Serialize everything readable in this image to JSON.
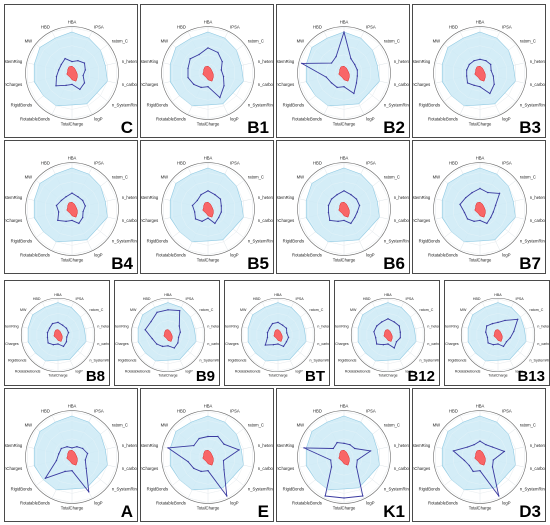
{
  "colors": {
    "range_fill": "#cdeaf6",
    "range_stroke": "#8fc9e2",
    "compound_line": "#3a3aa0",
    "reference_fill": "#ff4d4d",
    "grid": "#d6dde2"
  },
  "chart_data": [
    {
      "type": "radar",
      "panel_label": "C",
      "row": 0,
      "axes": [
        "HBA",
        "IPSA",
        "ratom_C",
        "n_hetero",
        "n_carbon",
        "n_SystemRing",
        "logP",
        "TotalCharge",
        "RotatableBonds",
        "RigidBonds",
        "kcmCharges",
        "SizeSystemRing",
        "MW",
        "HBD"
      ],
      "range": [
        0.9,
        0.85,
        0.8,
        0.75,
        0.8,
        0.7,
        0.75,
        0.7,
        0.8,
        0.8,
        0.85,
        0.85,
        0.9,
        0.85
      ],
      "reference": [
        0.15,
        0.12,
        0.1,
        0.1,
        0.12,
        0.15,
        0.2,
        0.15,
        0.1,
        0.1,
        0.12,
        0.1,
        0.12,
        0.15
      ],
      "compound": [
        0.25,
        0.3,
        0.35,
        0.3,
        0.25,
        0.35,
        0.4,
        0.25,
        0.3,
        0.45,
        0.35,
        0.3,
        0.3,
        0.35
      ]
    },
    {
      "type": "radar",
      "panel_label": "B1",
      "row": 0,
      "axes": [
        "HBA",
        "IPSA",
        "ratom_C",
        "n_hetero",
        "n_carbon",
        "n_SystemRing",
        "logP",
        "TotalCharge",
        "RotatableBonds",
        "RigidBonds",
        "kcmCharges",
        "SizeSystemRing",
        "MW",
        "HBD"
      ],
      "range": [
        0.9,
        0.85,
        0.8,
        0.75,
        0.8,
        0.7,
        0.75,
        0.7,
        0.8,
        0.8,
        0.85,
        0.85,
        0.9,
        0.85
      ],
      "reference": [
        0.15,
        0.12,
        0.1,
        0.1,
        0.12,
        0.15,
        0.2,
        0.15,
        0.1,
        0.1,
        0.12,
        0.1,
        0.12,
        0.15
      ],
      "compound": [
        0.55,
        0.5,
        0.4,
        0.3,
        0.35,
        0.45,
        0.6,
        0.3,
        0.35,
        0.4,
        0.45,
        0.45,
        0.5,
        0.45
      ]
    },
    {
      "type": "radar",
      "panel_label": "B2",
      "row": 0,
      "axes": [
        "HBA",
        "IPSA",
        "ratom_C",
        "n_hetero",
        "n_carbon",
        "n_SystemRing",
        "logP",
        "TotalCharge",
        "RotatableBonds",
        "RigidBonds",
        "kcmCharges",
        "SizeSystemRing",
        "MW",
        "HBD"
      ],
      "range": [
        0.9,
        0.85,
        0.8,
        0.75,
        0.8,
        0.7,
        0.75,
        0.7,
        0.8,
        0.8,
        0.85,
        0.85,
        0.9,
        0.85
      ],
      "reference": [
        0.15,
        0.12,
        0.1,
        0.1,
        0.12,
        0.15,
        0.2,
        0.15,
        0.1,
        0.1,
        0.12,
        0.1,
        0.12,
        0.15
      ],
      "compound": [
        0.9,
        0.35,
        0.3,
        0.3,
        0.3,
        0.35,
        0.5,
        0.3,
        0.35,
        0.35,
        0.4,
        0.95,
        0.35,
        0.4
      ]
    },
    {
      "type": "radar",
      "panel_label": "B3",
      "row": 0,
      "axes": [
        "HBA",
        "IPSA",
        "ratom_C",
        "n_hetero",
        "n_carbon",
        "n_SystemRing",
        "logP",
        "TotalCharge",
        "RotatableBonds",
        "RigidBonds",
        "kcmCharges",
        "SizeSystemRing",
        "MW",
        "HBD"
      ],
      "range": [
        0.9,
        0.85,
        0.8,
        0.75,
        0.8,
        0.7,
        0.75,
        0.7,
        0.8,
        0.8,
        0.85,
        0.85,
        0.9,
        0.85
      ],
      "reference": [
        0.15,
        0.12,
        0.1,
        0.1,
        0.12,
        0.15,
        0.2,
        0.15,
        0.1,
        0.1,
        0.12,
        0.1,
        0.12,
        0.15
      ],
      "compound": [
        0.3,
        0.3,
        0.3,
        0.25,
        0.3,
        0.4,
        0.5,
        0.3,
        0.3,
        0.35,
        0.3,
        0.3,
        0.3,
        0.3
      ]
    },
    {
      "type": "radar",
      "panel_label": "B4",
      "row": 1,
      "axes": [
        "HBA",
        "IPSA",
        "ratom_C",
        "n_hetero",
        "n_carbon",
        "n_SystemRing",
        "logP",
        "TotalCharge",
        "RotatableBonds",
        "RigidBonds",
        "kcmCharges",
        "SizeSystemRing",
        "MW",
        "HBD"
      ],
      "range": [
        0.9,
        0.85,
        0.8,
        0.75,
        0.8,
        0.7,
        0.75,
        0.7,
        0.8,
        0.8,
        0.85,
        0.85,
        0.9,
        0.85
      ],
      "reference": [
        0.15,
        0.12,
        0.1,
        0.1,
        0.12,
        0.15,
        0.2,
        0.15,
        0.1,
        0.1,
        0.12,
        0.1,
        0.12,
        0.15
      ],
      "compound": [
        0.35,
        0.3,
        0.3,
        0.3,
        0.25,
        0.3,
        0.35,
        0.25,
        0.3,
        0.4,
        0.3,
        0.35,
        0.3,
        0.3
      ]
    },
    {
      "type": "radar",
      "panel_label": "B5",
      "row": 1,
      "axes": [
        "HBA",
        "IPSA",
        "ratom_C",
        "n_hetero",
        "n_carbon",
        "n_SystemRing",
        "logP",
        "TotalCharge",
        "RotatableBonds",
        "RigidBonds",
        "kcmCharges",
        "SizeSystemRing",
        "MW",
        "HBD"
      ],
      "range": [
        0.9,
        0.85,
        0.8,
        0.75,
        0.8,
        0.7,
        0.75,
        0.7,
        0.8,
        0.8,
        0.85,
        0.85,
        0.9,
        0.85
      ],
      "reference": [
        0.15,
        0.12,
        0.1,
        0.1,
        0.12,
        0.15,
        0.2,
        0.15,
        0.1,
        0.1,
        0.12,
        0.1,
        0.12,
        0.15
      ],
      "compound": [
        0.4,
        0.35,
        0.35,
        0.3,
        0.3,
        0.3,
        0.35,
        0.2,
        0.3,
        0.35,
        0.3,
        0.35,
        0.3,
        0.35
      ]
    },
    {
      "type": "radar",
      "panel_label": "B6",
      "row": 1,
      "axes": [
        "HBA",
        "IPSA",
        "ratom_C",
        "n_hetero",
        "n_carbon",
        "n_SystemRing",
        "logP",
        "TotalCharge",
        "RotatableBonds",
        "RigidBonds",
        "kcmCharges",
        "SizeSystemRing",
        "MW",
        "HBD"
      ],
      "range": [
        0.9,
        0.85,
        0.8,
        0.75,
        0.8,
        0.7,
        0.75,
        0.7,
        0.8,
        0.8,
        0.85,
        0.85,
        0.9,
        0.85
      ],
      "reference": [
        0.15,
        0.12,
        0.1,
        0.1,
        0.12,
        0.15,
        0.2,
        0.15,
        0.1,
        0.1,
        0.12,
        0.1,
        0.12,
        0.15
      ],
      "compound": [
        0.4,
        0.35,
        0.35,
        0.35,
        0.3,
        0.3,
        0.35,
        0.25,
        0.3,
        0.4,
        0.35,
        0.35,
        0.35,
        0.35
      ]
    },
    {
      "type": "radar",
      "panel_label": "B7",
      "row": 1,
      "axes": [
        "HBA",
        "IPSA",
        "ratom_C",
        "n_hetero",
        "n_carbon",
        "n_SystemRing",
        "logP",
        "TotalCharge",
        "RotatableBonds",
        "RigidBonds",
        "kcmCharges",
        "SizeSystemRing",
        "MW",
        "HBD"
      ],
      "range": [
        0.9,
        0.85,
        0.8,
        0.75,
        0.8,
        0.7,
        0.75,
        0.7,
        0.8,
        0.8,
        0.85,
        0.85,
        0.9,
        0.85
      ],
      "reference": [
        0.15,
        0.12,
        0.1,
        0.1,
        0.12,
        0.15,
        0.2,
        0.15,
        0.1,
        0.1,
        0.12,
        0.1,
        0.12,
        0.15
      ],
      "compound": [
        0.45,
        0.4,
        0.55,
        0.35,
        0.3,
        0.3,
        0.35,
        0.25,
        0.3,
        0.35,
        0.35,
        0.45,
        0.4,
        0.4
      ]
    },
    {
      "type": "radar",
      "panel_label": "B8",
      "row": 2,
      "axes": [
        "HBA",
        "IPSA",
        "ratom_C",
        "n_hetero",
        "n_carbon",
        "n_SystemRing",
        "logP",
        "TotalCharge",
        "RotatableBonds",
        "RigidBonds",
        "kcmCharges",
        "SizeSystemRing",
        "MW",
        "HBD"
      ],
      "range": [
        0.9,
        0.85,
        0.8,
        0.75,
        0.8,
        0.7,
        0.75,
        0.7,
        0.8,
        0.8,
        0.85,
        0.85,
        0.9,
        0.85
      ],
      "reference": [
        0.15,
        0.12,
        0.1,
        0.1,
        0.12,
        0.15,
        0.2,
        0.15,
        0.1,
        0.1,
        0.12,
        0.1,
        0.12,
        0.15
      ],
      "compound": [
        0.35,
        0.3,
        0.3,
        0.3,
        0.25,
        0.3,
        0.35,
        0.25,
        0.3,
        0.35,
        0.3,
        0.3,
        0.3,
        0.35
      ]
    },
    {
      "type": "radar",
      "panel_label": "B9",
      "row": 2,
      "axes": [
        "HBA",
        "IPSA",
        "ratom_C",
        "n_hetero",
        "n_carbon",
        "n_SystemRing",
        "logP",
        "TotalCharge",
        "RotatableBonds",
        "RigidBonds",
        "kcmCharges",
        "SizeSystemRing",
        "MW",
        "HBD"
      ],
      "range": [
        0.9,
        0.85,
        0.8,
        0.75,
        0.8,
        0.7,
        0.75,
        0.7,
        0.8,
        0.8,
        0.85,
        0.85,
        0.9,
        0.85
      ],
      "reference": [
        0.15,
        0.12,
        0.1,
        0.1,
        0.12,
        0.15,
        0.2,
        0.15,
        0.1,
        0.1,
        0.12,
        0.1,
        0.12,
        0.15
      ],
      "compound": [
        0.7,
        0.75,
        0.4,
        0.35,
        0.3,
        0.35,
        0.4,
        0.3,
        0.35,
        0.4,
        0.45,
        0.65,
        0.6,
        0.7
      ]
    },
    {
      "type": "radar",
      "panel_label": "BT",
      "row": 2,
      "axes": [
        "HBA",
        "IPSA",
        "ratom_C",
        "n_hetero",
        "n_carbon",
        "n_SystemRing",
        "logP",
        "TotalCharge",
        "RotatableBonds",
        "RigidBonds",
        "kcmCharges",
        "SizeSystemRing",
        "MW",
        "HBD"
      ],
      "range": [
        0.9,
        0.85,
        0.8,
        0.75,
        0.8,
        0.7,
        0.75,
        0.7,
        0.8,
        0.8,
        0.85,
        0.85,
        0.9,
        0.85
      ],
      "reference": [
        0.15,
        0.12,
        0.1,
        0.1,
        0.12,
        0.15,
        0.2,
        0.15,
        0.1,
        0.1,
        0.12,
        0.1,
        0.12,
        0.15
      ],
      "compound": [
        0.35,
        0.3,
        0.3,
        0.25,
        0.3,
        0.3,
        0.35,
        0.25,
        0.3,
        0.45,
        0.3,
        0.3,
        0.3,
        0.35
      ]
    },
    {
      "type": "radar",
      "panel_label": "B12",
      "row": 2,
      "axes": [
        "HBA",
        "IPSA",
        "ratom_C",
        "n_hetero",
        "n_carbon",
        "n_SystemRing",
        "logP",
        "TotalCharge",
        "RotatableBonds",
        "RigidBonds",
        "kcmCharges",
        "SizeSystemRing",
        "MW",
        "HBD"
      ],
      "range": [
        0.9,
        0.85,
        0.8,
        0.75,
        0.8,
        0.7,
        0.75,
        0.7,
        0.8,
        0.8,
        0.85,
        0.85,
        0.9,
        0.85
      ],
      "reference": [
        0.15,
        0.12,
        0.1,
        0.1,
        0.12,
        0.15,
        0.2,
        0.15,
        0.1,
        0.1,
        0.12,
        0.1,
        0.12,
        0.15
      ],
      "compound": [
        0.45,
        0.4,
        0.4,
        0.35,
        0.35,
        0.3,
        0.4,
        0.25,
        0.3,
        0.4,
        0.35,
        0.4,
        0.4,
        0.4
      ]
    },
    {
      "type": "radar",
      "panel_label": "B13",
      "row": 2,
      "axes": [
        "HBA",
        "IPSA",
        "ratom_C",
        "n_hetero",
        "n_carbon",
        "n_SystemRing",
        "logP",
        "TotalCharge",
        "RotatableBonds",
        "RigidBonds",
        "kcmCharges",
        "SizeSystemRing",
        "MW",
        "HBD"
      ],
      "range": [
        0.9,
        0.85,
        0.8,
        0.75,
        0.8,
        0.7,
        0.75,
        0.7,
        0.8,
        0.8,
        0.85,
        0.85,
        0.9,
        0.85
      ],
      "reference": [
        0.15,
        0.12,
        0.1,
        0.1,
        0.12,
        0.15,
        0.2,
        0.15,
        0.1,
        0.1,
        0.12,
        0.1,
        0.12,
        0.15
      ],
      "compound": [
        0.35,
        0.45,
        0.7,
        0.45,
        0.35,
        0.3,
        0.35,
        0.25,
        0.3,
        0.35,
        0.3,
        0.35,
        0.4,
        0.35
      ]
    },
    {
      "type": "radar",
      "panel_label": "A",
      "row": 3,
      "axes": [
        "HBA",
        "IPSA",
        "ratom_C",
        "n_hetero",
        "n_carbon",
        "n_SystemRing",
        "logP",
        "TotalCharge",
        "RotatableBonds",
        "RigidBonds",
        "kcmCharges",
        "SizeSystemRing",
        "MW",
        "HBD"
      ],
      "range": [
        0.9,
        0.85,
        0.8,
        0.75,
        0.8,
        0.7,
        0.75,
        0.7,
        0.8,
        0.8,
        0.85,
        0.85,
        0.9,
        0.85
      ],
      "reference": [
        0.15,
        0.12,
        0.1,
        0.1,
        0.12,
        0.15,
        0.2,
        0.15,
        0.1,
        0.1,
        0.12,
        0.1,
        0.12,
        0.15
      ],
      "compound": [
        0.2,
        0.25,
        0.3,
        0.35,
        0.3,
        0.4,
        0.85,
        0.3,
        0.35,
        0.75,
        0.35,
        0.3,
        0.3,
        0.25
      ]
    },
    {
      "type": "radar",
      "panel_label": "E",
      "row": 3,
      "axes": [
        "HBA",
        "IPSA",
        "ratom_C",
        "n_hetero",
        "n_carbon",
        "n_SystemRing",
        "logP",
        "TotalCharge",
        "RotatableBonds",
        "RigidBonds",
        "kcmCharges",
        "SizeSystemRing",
        "MW",
        "HBD"
      ],
      "range": [
        0.9,
        0.85,
        0.8,
        0.75,
        0.8,
        0.7,
        0.75,
        0.7,
        0.8,
        0.8,
        0.85,
        0.85,
        0.9,
        0.85
      ],
      "reference": [
        0.15,
        0.12,
        0.1,
        0.1,
        0.12,
        0.15,
        0.2,
        0.15,
        0.1,
        0.1,
        0.12,
        0.1,
        0.12,
        0.15
      ],
      "compound": [
        0.45,
        0.5,
        0.45,
        0.7,
        0.35,
        0.45,
        0.95,
        0.3,
        0.35,
        0.4,
        0.45,
        0.9,
        0.4,
        0.45
      ]
    },
    {
      "type": "radar",
      "panel_label": "K1",
      "row": 3,
      "axes": [
        "HBA",
        "IPSA",
        "ratom_C",
        "n_hetero",
        "n_carbon",
        "n_SystemRing",
        "logP",
        "TotalCharge",
        "RotatableBonds",
        "RigidBonds",
        "kcmCharges",
        "SizeSystemRing",
        "MW",
        "HBD"
      ],
      "range": [
        0.9,
        0.85,
        0.8,
        0.75,
        0.8,
        0.7,
        0.75,
        0.7,
        0.8,
        0.8,
        0.85,
        0.85,
        0.9,
        0.85
      ],
      "reference": [
        0.15,
        0.12,
        0.1,
        0.1,
        0.12,
        0.15,
        0.2,
        0.15,
        0.1,
        0.1,
        0.12,
        0.1,
        0.12,
        0.15
      ],
      "compound": [
        0.3,
        0.3,
        0.3,
        0.6,
        0.3,
        0.35,
        0.95,
        0.9,
        0.95,
        0.35,
        0.3,
        0.9,
        0.3,
        0.35
      ]
    },
    {
      "type": "radar",
      "panel_label": "D3",
      "row": 3,
      "axes": [
        "HBA",
        "IPSA",
        "ratom_C",
        "n_hetero",
        "n_carbon",
        "n_SystemRing",
        "logP",
        "TotalCharge",
        "RotatableBonds",
        "RigidBonds",
        "kcmCharges",
        "SizeSystemRing",
        "MW",
        "HBD"
      ],
      "range": [
        0.9,
        0.85,
        0.8,
        0.75,
        0.8,
        0.7,
        0.75,
        0.7,
        0.8,
        0.8,
        0.85,
        0.85,
        0.9,
        0.85
      ],
      "reference": [
        0.15,
        0.12,
        0.1,
        0.1,
        0.12,
        0.15,
        0.2,
        0.15,
        0.1,
        0.1,
        0.12,
        0.1,
        0.12,
        0.15
      ],
      "compound": [
        0.35,
        0.3,
        0.35,
        0.55,
        0.3,
        0.35,
        0.95,
        0.3,
        0.35,
        0.3,
        0.35,
        0.6,
        0.35,
        0.3
      ]
    }
  ]
}
